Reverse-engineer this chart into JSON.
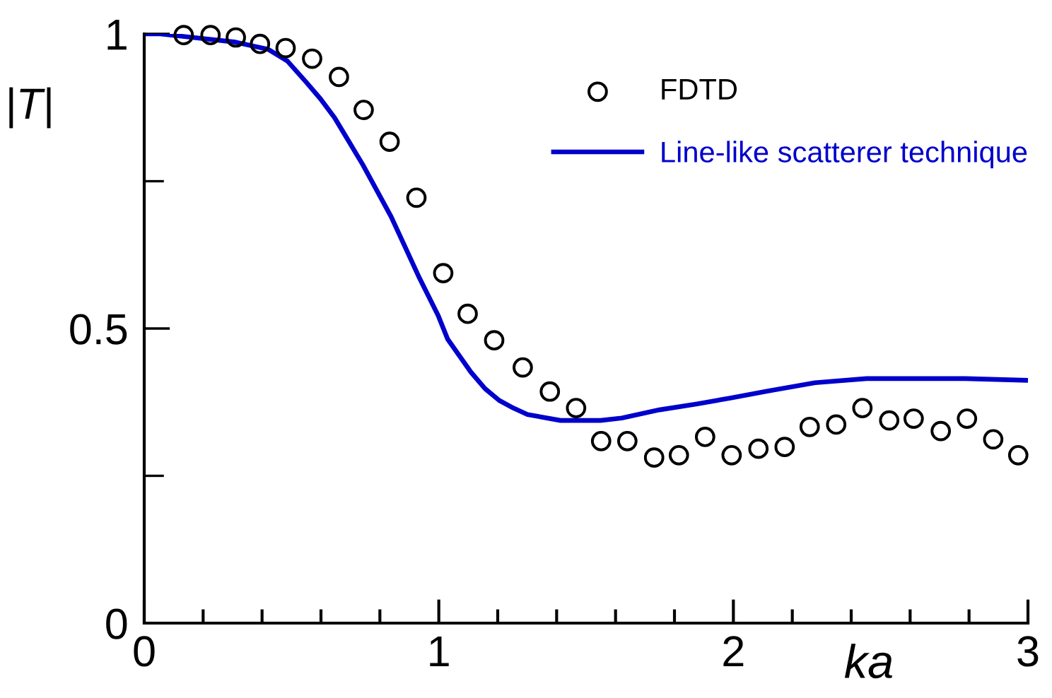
{
  "chart_data": {
    "type": "line",
    "xlabel": "ka",
    "ylabel": "|T|",
    "xlim": [
      0,
      3
    ],
    "ylim": [
      0,
      1
    ],
    "xticks": [
      0,
      {
        "value": 0.2,
        "label": null
      },
      {
        "value": 0.4,
        "label": null
      },
      {
        "value": 0.6,
        "label": null
      },
      {
        "value": 0.8,
        "label": null
      },
      1,
      {
        "value": 1.2,
        "label": null
      },
      {
        "value": 1.4,
        "label": null
      },
      {
        "value": 1.6,
        "label": null
      },
      {
        "value": 1.8,
        "label": null
      },
      2,
      {
        "value": 2.2,
        "label": null
      },
      {
        "value": 2.4,
        "label": null
      },
      {
        "value": 2.6,
        "label": null
      },
      {
        "value": 2.8,
        "label": null
      },
      3
    ],
    "yticks": [
      0,
      {
        "value": 0.25,
        "label": null
      },
      0.5,
      {
        "value": 0.75,
        "label": null
      },
      1
    ],
    "grid": false,
    "legend": "top right",
    "series": [
      {
        "name": "FDTD",
        "type": "scatter",
        "marker": "circle",
        "color": "#000000",
        "x": [
          0.134,
          0.225,
          0.311,
          0.393,
          0.48,
          0.57,
          0.661,
          0.745,
          0.833,
          0.924,
          1.015,
          1.098,
          1.188,
          1.285,
          1.377,
          1.466,
          1.551,
          1.64,
          1.731,
          1.815,
          1.904,
          1.994,
          2.085,
          2.174,
          2.259,
          2.349,
          2.438,
          2.529,
          2.612,
          2.704,
          2.793,
          2.882,
          2.967
        ],
        "values": [
          0.998,
          0.998,
          0.994,
          0.983,
          0.976,
          0.958,
          0.927,
          0.871,
          0.817,
          0.722,
          0.594,
          0.525,
          0.48,
          0.434,
          0.393,
          0.365,
          0.309,
          0.309,
          0.281,
          0.285,
          0.316,
          0.285,
          0.296,
          0.299,
          0.333,
          0.337,
          0.365,
          0.344,
          0.347,
          0.326,
          0.347,
          0.312,
          0.285
        ]
      },
      {
        "name": "Line-like scatterer technique",
        "marker": "none",
        "line_style": "solid",
        "color": "#0000cc",
        "x": [
          0,
          0.054,
          0.31,
          0.42,
          0.486,
          0.55,
          0.598,
          0.646,
          0.694,
          0.742,
          0.79,
          0.838,
          0.886,
          0.934,
          0.998,
          1.03,
          1.109,
          1.157,
          1.205,
          1.253,
          1.301,
          1.413,
          1.549,
          1.621,
          1.749,
          1.877,
          1.989,
          2.117,
          2.277,
          2.452,
          2.788,
          2.996
        ],
        "values": [
          1.0,
          1.0,
          0.986,
          0.974,
          0.954,
          0.918,
          0.89,
          0.858,
          0.818,
          0.778,
          0.734,
          0.69,
          0.638,
          0.586,
          0.522,
          0.482,
          0.426,
          0.398,
          0.378,
          0.365,
          0.354,
          0.344,
          0.344,
          0.348,
          0.362,
          0.372,
          0.382,
          0.394,
          0.408,
          0.415,
          0.415,
          0.412
        ]
      }
    ]
  }
}
